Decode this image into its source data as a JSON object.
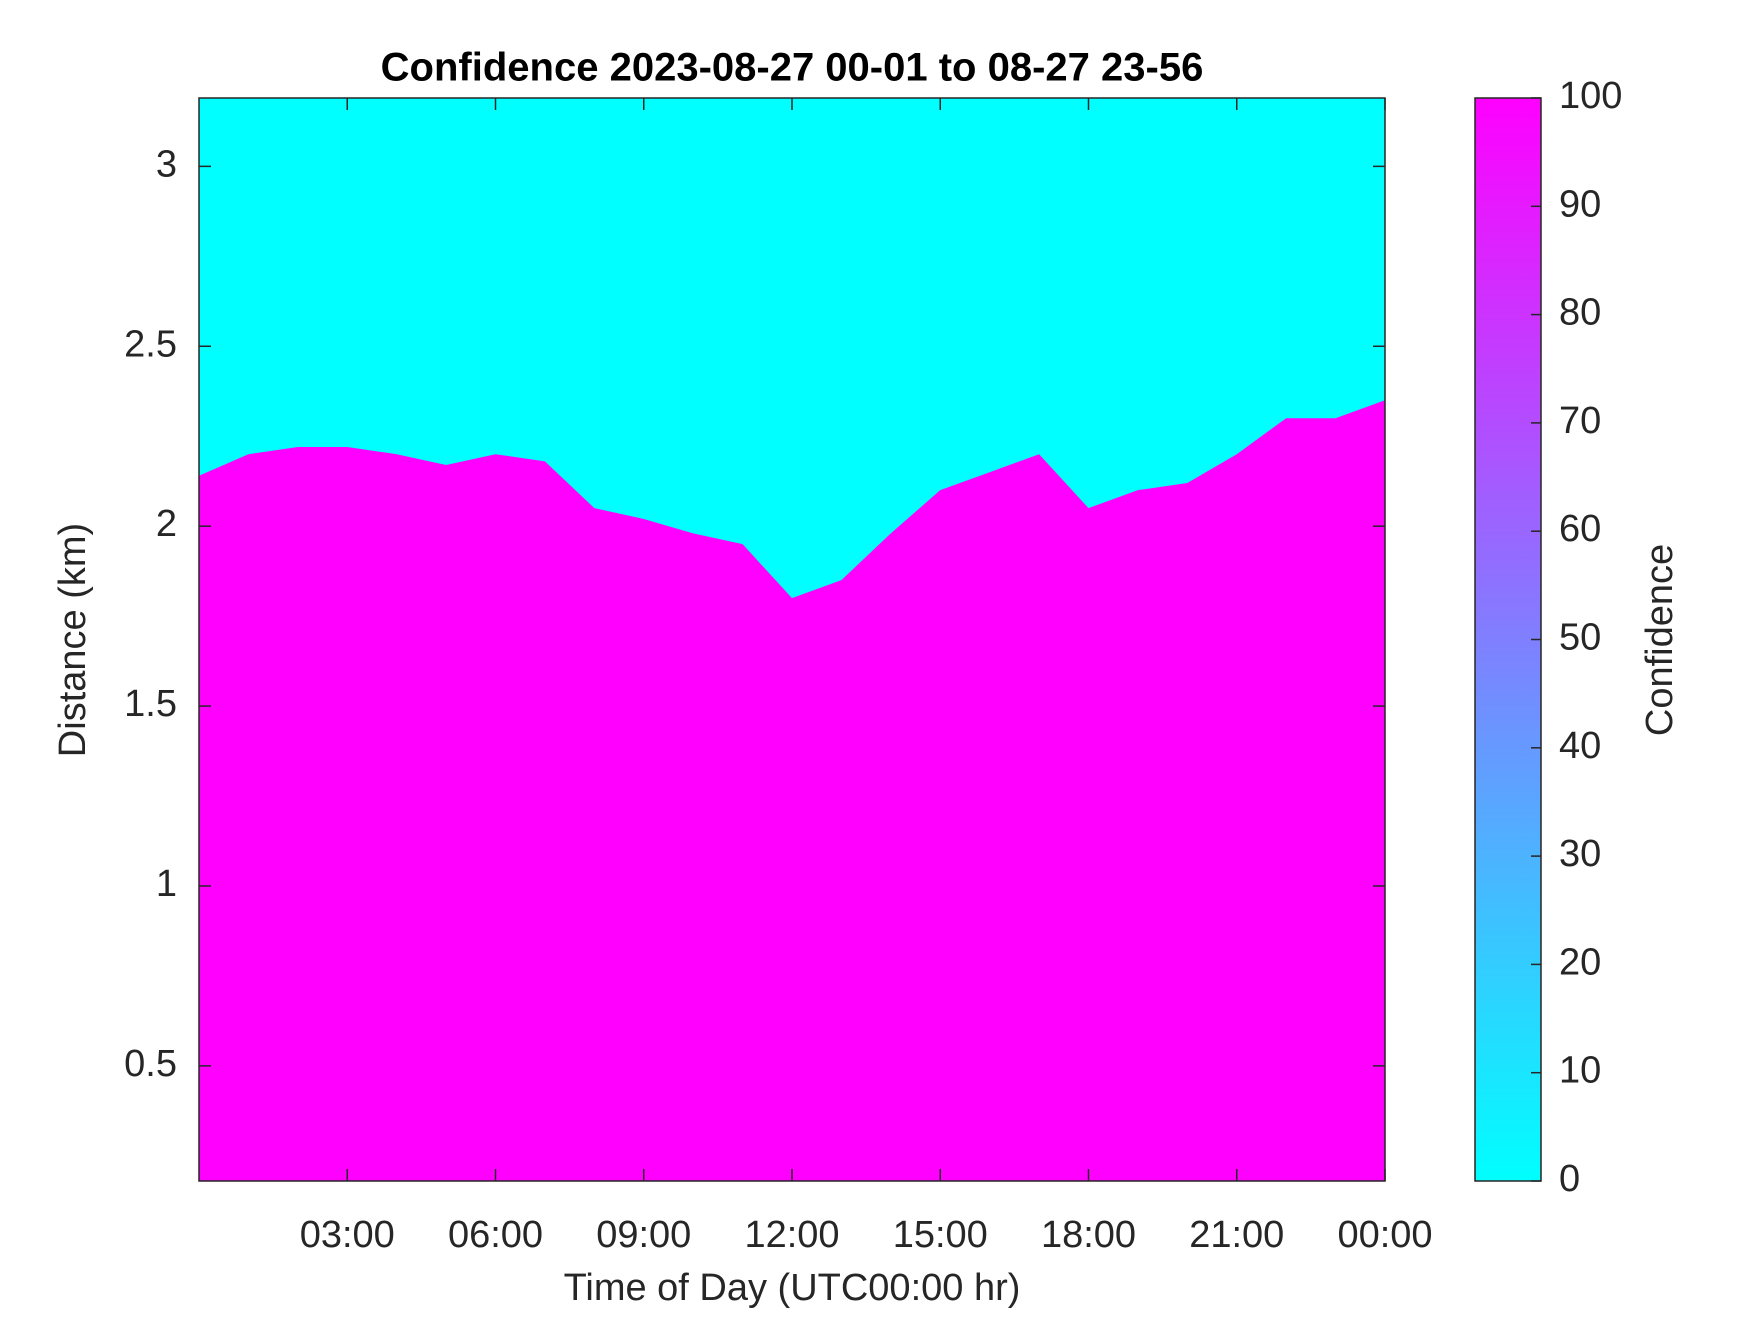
{
  "chart_data": {
    "type": "heatmap",
    "title": "Confidence 2023-08-27 00-01 to 08-27 23-56",
    "x_label": "Time of Day (UTC00:00 hr)",
    "y_label": "Distance (km)",
    "x": [
      0,
      1,
      2,
      3,
      4,
      5,
      6,
      7,
      8,
      9,
      10,
      11,
      12,
      13,
      14,
      15,
      16,
      17,
      18,
      19,
      20,
      21,
      22,
      23,
      24
    ],
    "values": [
      2.14,
      2.2,
      2.22,
      2.22,
      2.2,
      2.17,
      2.2,
      2.18,
      2.05,
      2.02,
      1.98,
      1.95,
      1.8,
      1.85,
      1.98,
      2.1,
      2.15,
      2.2,
      2.05,
      2.1,
      2.12,
      2.2,
      2.3,
      2.3,
      2.35
    ],
    "xlim": [
      0,
      24
    ],
    "xticks": [
      {
        "value": 3,
        "label": "03:00"
      },
      {
        "value": 6,
        "label": "06:00"
      },
      {
        "value": 9,
        "label": "09:00"
      },
      {
        "value": 12,
        "label": "12:00"
      },
      {
        "value": 15,
        "label": "15:00"
      },
      {
        "value": 18,
        "label": "18:00"
      },
      {
        "value": 21,
        "label": "21:00"
      },
      {
        "value": 24,
        "label": "00:00"
      }
    ],
    "ylim": [
      0.18,
      3.19
    ],
    "yticks": [
      0.5,
      1,
      1.5,
      2,
      2.5,
      3
    ],
    "colorbar": {
      "label": "Confidence",
      "lim": [
        0,
        100
      ],
      "ticks": [
        0,
        10,
        20,
        30,
        40,
        50,
        60,
        70,
        80,
        90,
        100
      ],
      "colors": [
        "#00ffff",
        "#ff00ff"
      ]
    }
  }
}
